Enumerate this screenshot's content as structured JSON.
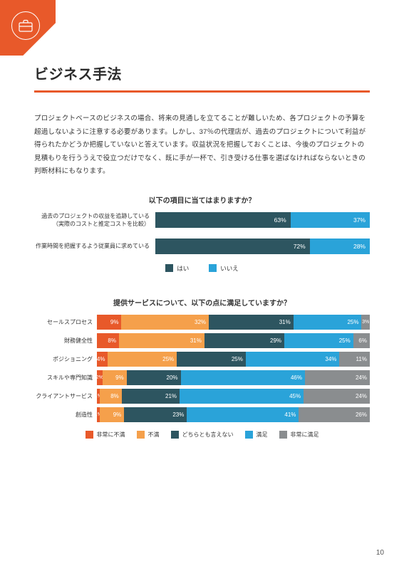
{
  "colors": {
    "accent": "#e8592a",
    "yes": "#2d5560",
    "no": "#2aa3d9",
    "s1": "#e8592a",
    "s2": "#f5a04b",
    "s3": "#2d5560",
    "s4": "#2aa3d9",
    "s5": "#8a8d8f"
  },
  "header": {
    "title": "ビジネス手法"
  },
  "body_text": "プロジェクトベースのビジネスの場合、将来の見通しを立てることが難しいため、各プロジェクトの予算を超過しないように注意する必要があります。しかし、37％の代理店が、過去のプロジェクトについて利益が得られたかどうか把握していないと答えています。収益状況を把握しておくことは、今後のプロジェクトの見積もりを行ううえで役立つだけでなく、既に手が一杯で、引き受ける仕事を選ばなければならないときの判断材料にもなります。",
  "chart1": {
    "title": "以下の項目に当てはまりますか？",
    "legend": {
      "yes": "はい",
      "no": "いいえ"
    },
    "rows": [
      {
        "label": "過去のプロジェクトの収益を追跡している\n（実際のコストと推定コストを比較）",
        "yes": 63,
        "no": 37
      },
      {
        "label": "作業時間を把握するよう従業員に求めている",
        "yes": 72,
        "no": 28
      }
    ]
  },
  "chart2": {
    "title": "提供サービスについて、以下の点に満足していますか？",
    "legend": {
      "s1": "非常に不満",
      "s2": "不満",
      "s3": "どちらとも言えない",
      "s4": "満足",
      "s5": "非常に満足"
    },
    "rows": [
      {
        "label": "セールスプロセス",
        "v": [
          9,
          32,
          31,
          25,
          3
        ]
      },
      {
        "label": "財務健全性",
        "v": [
          8,
          31,
          29,
          25,
          6
        ]
      },
      {
        "label": "ポジショニング",
        "v": [
          4,
          25,
          25,
          34,
          11
        ]
      },
      {
        "label": "スキルや専門知識",
        "v": [
          2,
          9,
          20,
          46,
          24
        ]
      },
      {
        "label": "クライアントサービス",
        "v": [
          1,
          8,
          21,
          45,
          24
        ]
      },
      {
        "label": "創造性",
        "v": [
          1,
          9,
          23,
          41,
          26
        ]
      }
    ]
  },
  "page_number": "10"
}
